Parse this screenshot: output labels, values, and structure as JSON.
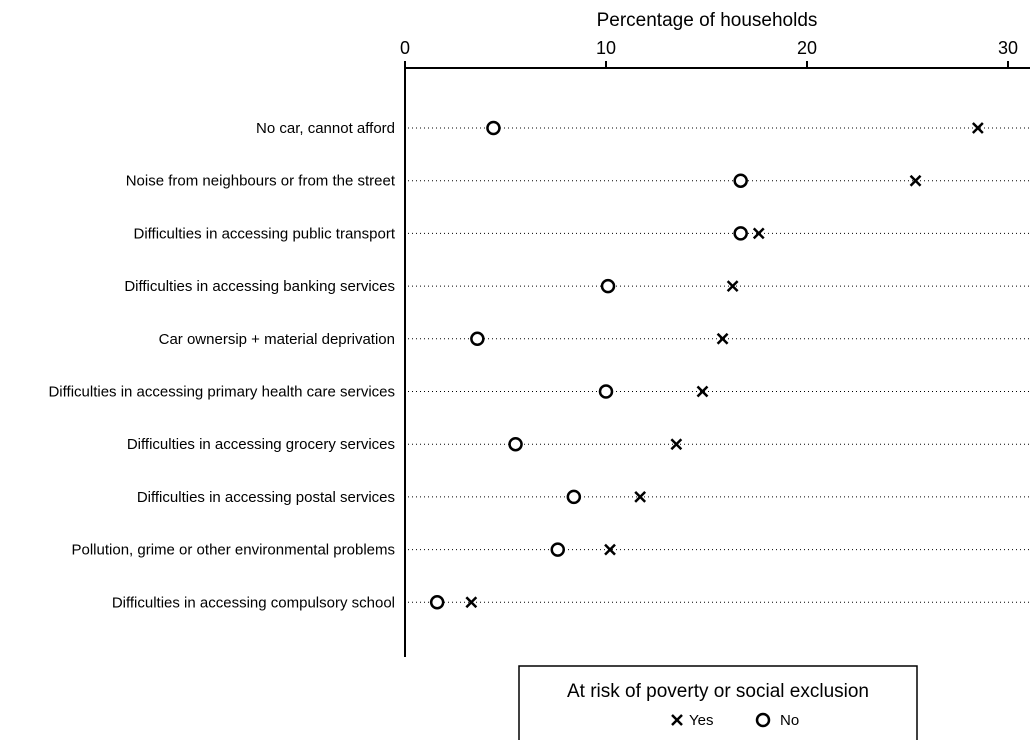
{
  "chart_data": {
    "type": "scatter",
    "title": "",
    "xlabel": "Percentage of households",
    "ylabel": "",
    "xlim": [
      0,
      31
    ],
    "xticks": [
      0,
      10,
      20,
      30
    ],
    "grid": "dotted horizontal guide lines per category",
    "legend_position": "bottom-center",
    "categories": [
      "No car, cannot afford",
      "Noise from neighbours or from the street",
      "Difficulties in accessing public transport",
      "Difficulties in accessing banking services",
      "Car ownersip + material deprivation",
      "Difficulties in accessing primary health care services",
      "Difficulties in accessing grocery services",
      "Difficulties in accessing postal services",
      "Pollution, grime or other environmental problems",
      "Difficulties in accessing compulsory school"
    ],
    "series": [
      {
        "name": "Yes",
        "marker": "cross",
        "values": [
          28.5,
          25.4,
          17.6,
          16.3,
          15.8,
          14.8,
          13.5,
          11.7,
          10.2,
          3.3
        ]
      },
      {
        "name": "No",
        "marker": "circle",
        "values": [
          4.4,
          16.7,
          16.7,
          10.1,
          3.6,
          10.0,
          5.5,
          8.4,
          7.6,
          1.6
        ]
      }
    ],
    "legend_title": "At risk of poverty or social exclusion"
  }
}
